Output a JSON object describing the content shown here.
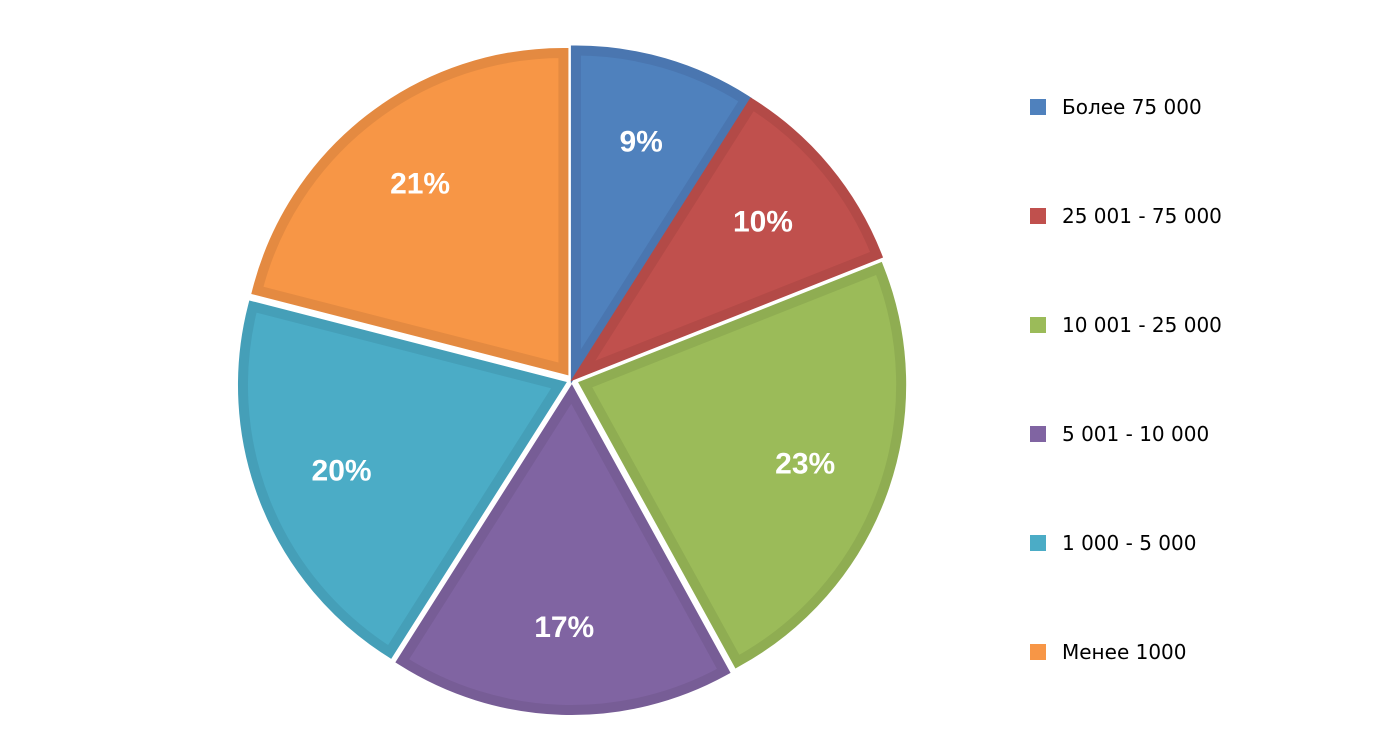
{
  "chart_data": {
    "type": "pie",
    "title": "",
    "categories": [
      "Более 75 000",
      "25 001 - 75 000",
      "10 001 - 25 000",
      "5 001 - 10 000",
      "1 000 - 5 000",
      "Менее 1000"
    ],
    "values": [
      9,
      10,
      23,
      17,
      20,
      21
    ],
    "value_labels": [
      "9%",
      "10%",
      "23%",
      "17%",
      "20%",
      "21%"
    ],
    "colors": [
      "#4F81BD",
      "#C0504D",
      "#9BBB59",
      "#8064A2",
      "#4BACC6",
      "#F79646"
    ],
    "border_colors": [
      "#4A76B0",
      "#B34A47",
      "#8FAD52",
      "#775D96",
      "#459FB8",
      "#E48A41"
    ],
    "exploded": true,
    "start_angle": "12 o'clock",
    "direction": "clockwise",
    "legend_position": "right"
  }
}
